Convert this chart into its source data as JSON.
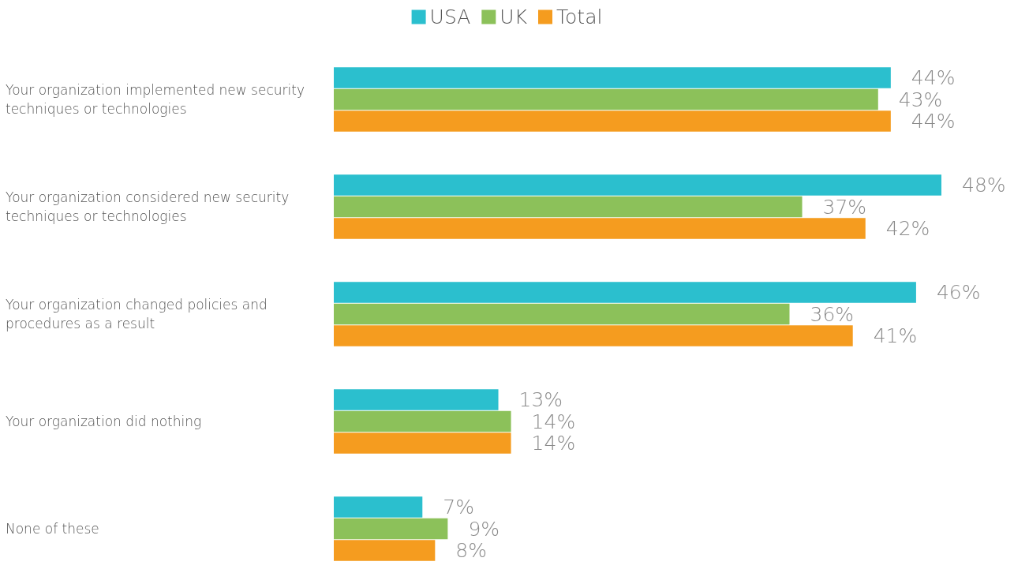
{
  "chart_data": {
    "type": "bar",
    "orientation": "horizontal",
    "legend": "top",
    "grid": false,
    "categories": [
      "Your organization implemented new security techniques or technologies",
      "Your organization considered new security techniques or technologies",
      "Your organization changed policies and procedures as a result",
      "Your organization did nothing",
      "None of these"
    ],
    "series": [
      {
        "name": "USA",
        "color": "#2bbfce",
        "values": [
          44,
          48,
          46,
          13,
          7
        ],
        "value_labels": [
          "44%",
          "48%",
          "46%",
          "13%",
          "7%"
        ]
      },
      {
        "name": "UK",
        "color": "#8cc15a",
        "values": [
          43,
          37,
          36,
          14,
          9
        ],
        "value_labels": [
          "43%",
          "37%",
          "36%",
          "14%",
          "9%"
        ]
      },
      {
        "name": "Total",
        "color": "#f59c1f",
        "values": [
          44,
          42,
          41,
          14,
          8
        ],
        "value_labels": [
          "44%",
          "42%",
          "41%",
          "14%",
          "8%"
        ]
      }
    ]
  }
}
